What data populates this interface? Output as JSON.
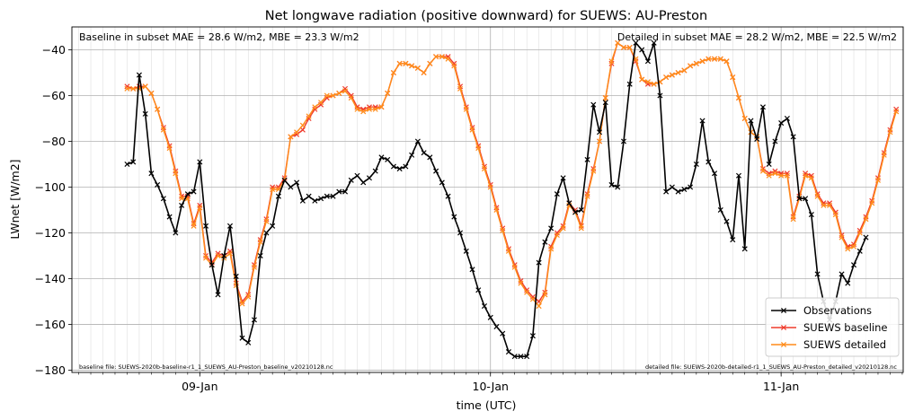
{
  "chart_data": {
    "type": "line",
    "title": "Net longwave radiation (positive downward) for SUEWS: AU-Preston",
    "xlabel": "time (UTC)",
    "ylabel": "LWnet [W/m2]",
    "ylim": [
      -181,
      -30
    ],
    "xlim": [
      -0.44,
      2.42
    ],
    "yticks": [
      -180,
      -160,
      -140,
      -120,
      -100,
      -80,
      -60,
      -40
    ],
    "xticks": [
      {
        "x": 0,
        "label": "09-Jan"
      },
      {
        "x": 1,
        "label": "10-Jan"
      },
      {
        "x": 2,
        "label": "11-Jan"
      }
    ],
    "grid": true,
    "legend_position": "lower-right",
    "annotations": {
      "baseline_stats": "Baseline in subset MAE = 28.6 W/m2, MBE = 23.3 W/m2",
      "detailed_stats": "Detailed in subset MAE = 28.2 W/m2, MBE = 22.5 W/m2",
      "baseline_file": "baseline file: SUEWS-2020b-baseline-r1_1_SUEWS_AU-Preston_baseline_v20210128.nc",
      "detailed_file": "detailed file: SUEWS-2020b-detailed-r1_1_SUEWS_AU-Preston_detailed_v20210128.nc"
    },
    "x_start_day": -0.25,
    "x_step_day": 0.0208333,
    "series": [
      {
        "name": "Observations",
        "color": "#000000",
        "values": [
          -90,
          -89,
          -51,
          -68,
          -94,
          -99,
          -105,
          -113,
          -120,
          -108,
          -103,
          -102,
          -89,
          -117,
          -134,
          -147,
          -130,
          -117,
          -139,
          -166,
          -168,
          -158,
          -130,
          -120,
          -117,
          -104,
          -97,
          -100,
          -98,
          -106,
          -104,
          -106,
          -105,
          -104,
          -104,
          -102,
          -102,
          -97,
          -95,
          -98,
          -96,
          -93,
          -87,
          -88,
          -91,
          -92,
          -91,
          -86,
          -80,
          -85,
          -87,
          -93,
          -98,
          -104,
          -113,
          -120,
          -128,
          -136,
          -145,
          -152,
          -157,
          -161,
          -164,
          -172,
          -174,
          -174,
          -174,
          -165,
          -133,
          -124,
          -118,
          -103,
          -96,
          -107,
          -111,
          -110,
          -88,
          -64,
          -76,
          -63,
          -99,
          -100,
          -80,
          -55,
          -37,
          -40,
          -45,
          -37,
          -60,
          -102,
          -100,
          -102,
          -101,
          -100,
          -90,
          -71,
          -89,
          -94,
          -110,
          -115,
          -123,
          -95,
          -127,
          -71,
          -79,
          -65,
          -90,
          -80,
          -72,
          -70,
          -78,
          -105,
          -105,
          -112,
          -138,
          -150,
          -158,
          -150,
          -138,
          -142,
          -134,
          -128,
          -122
        ]
      },
      {
        "name": "SUEWS baseline",
        "color": "#ef3b2c",
        "values": [
          -56,
          -57,
          -56,
          -56,
          -59,
          -66,
          -74,
          -82,
          -93,
          -104,
          -104,
          -116,
          -108,
          -130,
          -133,
          -129,
          -130,
          -128,
          -142,
          -150,
          -147,
          -134,
          -123,
          -114,
          -100,
          -100,
          -96,
          -78,
          -77,
          -75,
          -70,
          -66,
          -64,
          -61,
          -60,
          -59,
          -57,
          -60,
          -65,
          -66,
          -65,
          -65,
          -65,
          -59,
          -50,
          -46,
          -46,
          -47,
          -48,
          -50,
          -46,
          -43,
          -43,
          -43,
          -46,
          -56,
          -65,
          -74,
          -82,
          -91,
          -99,
          -109,
          -118,
          -127,
          -134,
          -141,
          -145,
          -148,
          -150,
          -146,
          -126,
          -120,
          -117,
          -107,
          -110,
          -117,
          -103,
          -92,
          -80,
          -61,
          -46,
          -37,
          -39,
          -39,
          -45,
          -53,
          -55,
          -55,
          -54,
          -52,
          -51,
          -50,
          -49,
          -47,
          -46,
          -45,
          -44,
          -44,
          -44,
          -45,
          -52,
          -61,
          -70,
          -76,
          -78,
          -92,
          -94,
          -93,
          -94,
          -94,
          -113,
          -104,
          -94,
          -95,
          -103,
          -107,
          -107,
          -111,
          -121,
          -126,
          -125,
          -119,
          -113,
          -106,
          -96,
          -85,
          -75,
          -66
        ]
      },
      {
        "name": "SUEWS detailed",
        "color": "#ff8c1a",
        "values": [
          -57,
          -57,
          -57,
          -56,
          -59,
          -66,
          -75,
          -83,
          -94,
          -105,
          -105,
          -117,
          -109,
          -131,
          -134,
          -130,
          -131,
          -129,
          -143,
          -151,
          -148,
          -135,
          -124,
          -115,
          -101,
          -101,
          -97,
          -78,
          -76,
          -73,
          -69,
          -65,
          -63,
          -60,
          -60,
          -59,
          -58,
          -61,
          -66,
          -67,
          -66,
          -66,
          -65,
          -59,
          -50,
          -46,
          -46,
          -47,
          -48,
          -50,
          -46,
          -43,
          -43,
          -44,
          -47,
          -57,
          -66,
          -75,
          -83,
          -92,
          -100,
          -110,
          -119,
          -128,
          -135,
          -142,
          -146,
          -149,
          -152,
          -147,
          -127,
          -121,
          -118,
          -108,
          -111,
          -118,
          -104,
          -93,
          -80,
          -61,
          -45,
          -37,
          -39,
          -39,
          -44,
          -53,
          -54,
          -55,
          -54,
          -52,
          -51,
          -50,
          -49,
          -47,
          -46,
          -45,
          -44,
          -44,
          -44,
          -45,
          -52,
          -61,
          -70,
          -76,
          -78,
          -93,
          -95,
          -94,
          -95,
          -95,
          -114,
          -105,
          -95,
          -96,
          -104,
          -108,
          -108,
          -112,
          -122,
          -127,
          -126,
          -120,
          -114,
          -107,
          -97,
          -86,
          -76,
          -67
        ]
      }
    ]
  }
}
